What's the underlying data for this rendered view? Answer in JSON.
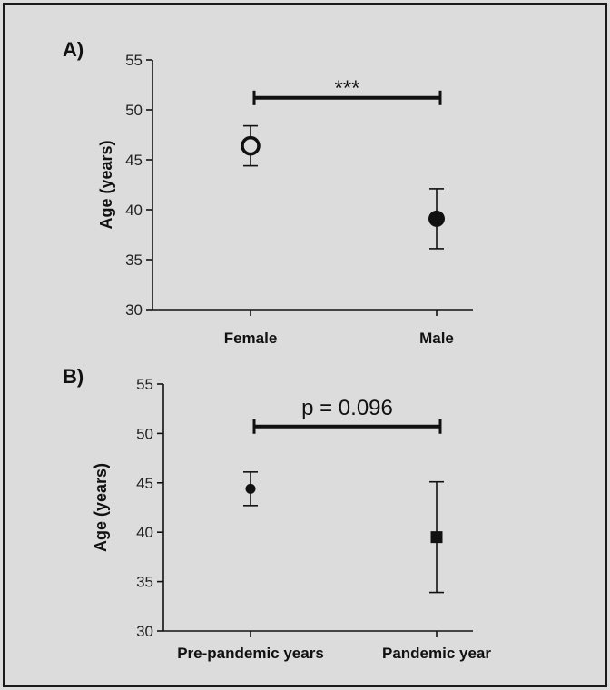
{
  "chart_data": [
    {
      "type": "scatter",
      "panel_label": "A)",
      "ylabel": "Age (years)",
      "ylim": [
        30,
        55
      ],
      "yticks": [
        30,
        35,
        40,
        45,
        50,
        55
      ],
      "categories": [
        "Female",
        "Male"
      ],
      "points": [
        {
          "category": "Female",
          "mean": 46.4,
          "err_low": 44.4,
          "err_high": 48.4,
          "marker": "open-circle"
        },
        {
          "category": "Male",
          "mean": 39.1,
          "err_low": 36.1,
          "err_high": 42.1,
          "marker": "filled-circle"
        }
      ],
      "significance": {
        "label": "***",
        "y": 51.2
      }
    },
    {
      "type": "scatter",
      "panel_label": "B)",
      "ylabel": "Age (years)",
      "ylim": [
        30,
        55
      ],
      "yticks": [
        30,
        35,
        40,
        45,
        50,
        55
      ],
      "categories": [
        "Pre-pandemic years",
        "Pandemic year"
      ],
      "points": [
        {
          "category": "Pre-pandemic years",
          "mean": 44.4,
          "err_low": 42.7,
          "err_high": 46.1,
          "marker": "small-filled-circle"
        },
        {
          "category": "Pandemic year",
          "mean": 39.5,
          "err_low": 33.9,
          "err_high": 45.1,
          "marker": "filled-square"
        }
      ],
      "significance": {
        "label": "p = 0.096",
        "y": 50.7
      }
    }
  ]
}
